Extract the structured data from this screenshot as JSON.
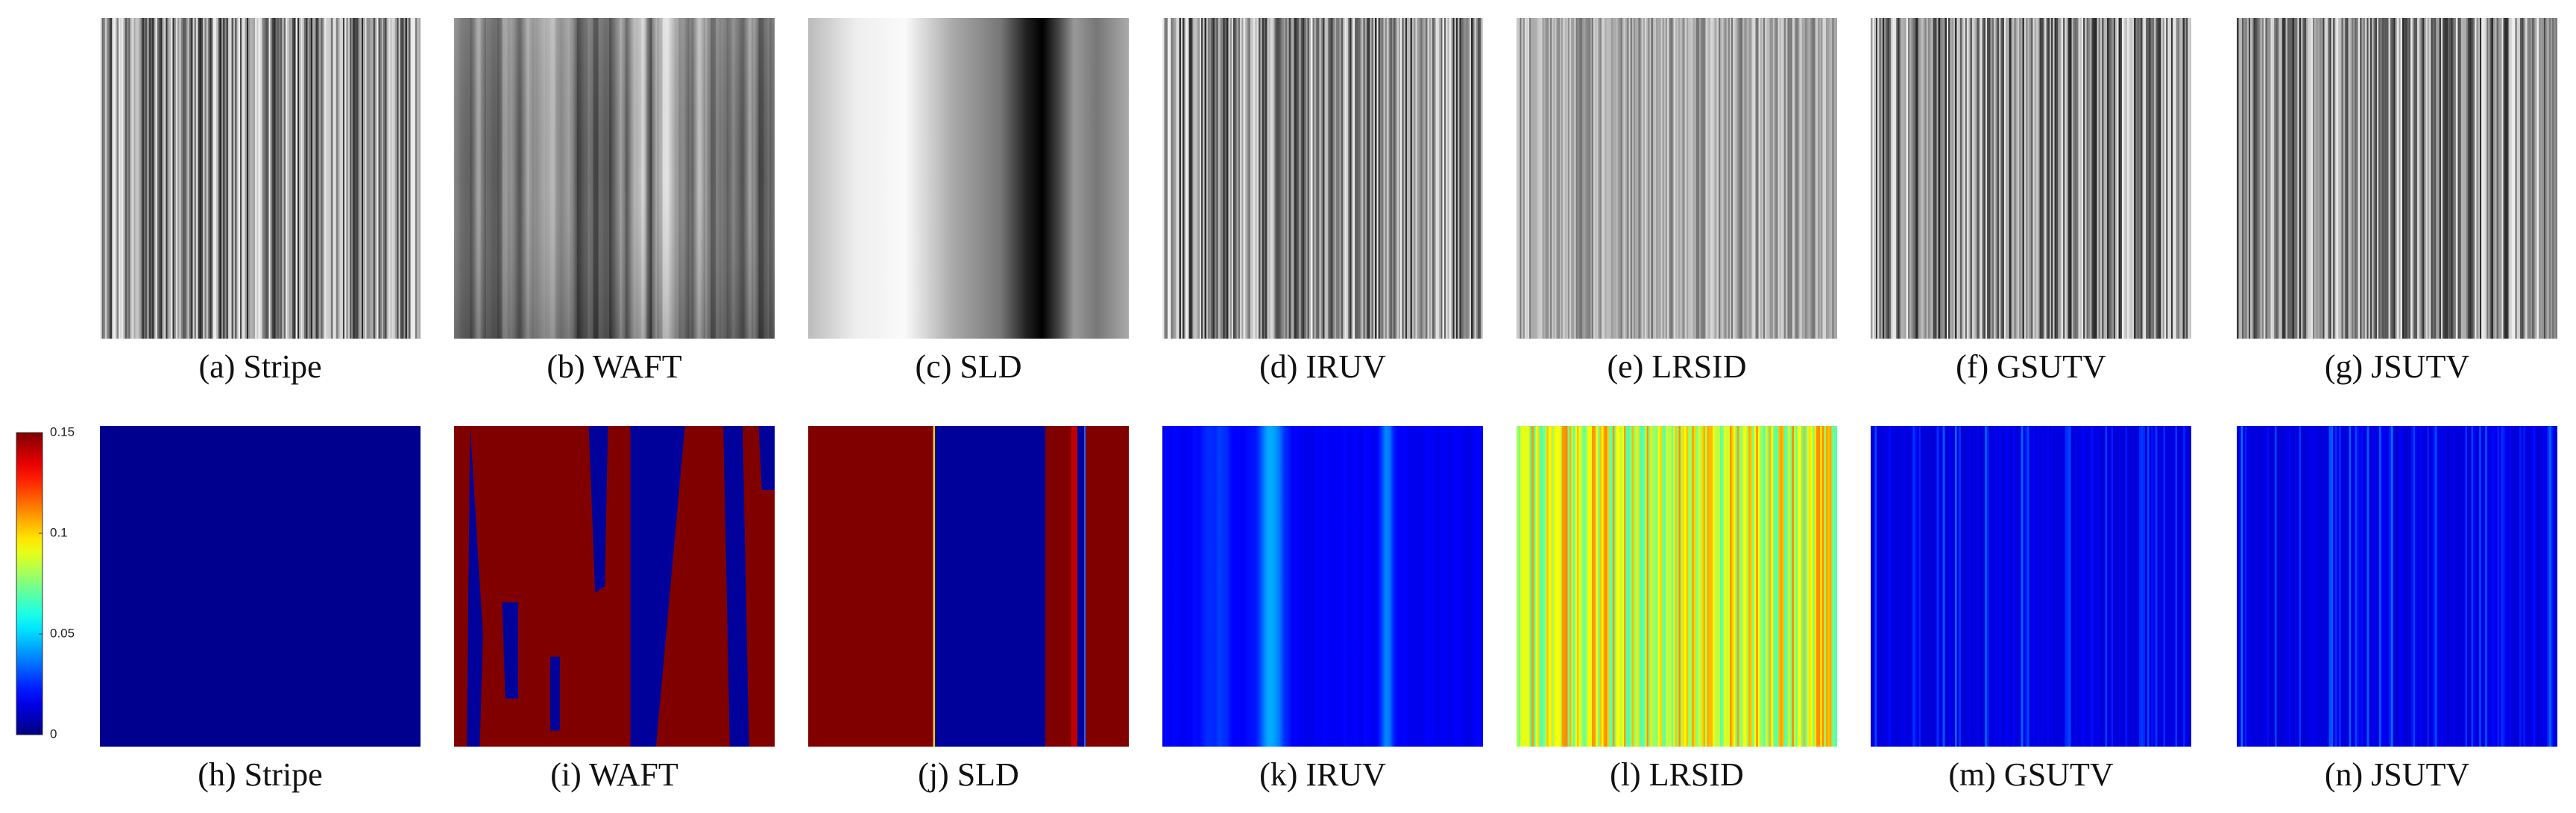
{
  "top_row": [
    {
      "caption": "(a) Stripe"
    },
    {
      "caption": "(b) WAFT"
    },
    {
      "caption": "(c) SLD"
    },
    {
      "caption": "(d) IRUV"
    },
    {
      "caption": "(e) LRSID"
    },
    {
      "caption": "(f) GSUTV"
    },
    {
      "caption": "(g) JSUTV"
    }
  ],
  "bottom_row": [
    {
      "caption": "(h) Stripe"
    },
    {
      "caption": "(i) WAFT"
    },
    {
      "caption": "(j) SLD"
    },
    {
      "caption": "(k) IRUV"
    },
    {
      "caption": "(l) LRSID"
    },
    {
      "caption": "(m) GSUTV"
    },
    {
      "caption": "(n) JSUTV"
    }
  ],
  "colorbar": {
    "lim": [
      0,
      0.15
    ],
    "ticks": [
      0.15,
      0.1,
      0.05,
      0
    ]
  }
}
